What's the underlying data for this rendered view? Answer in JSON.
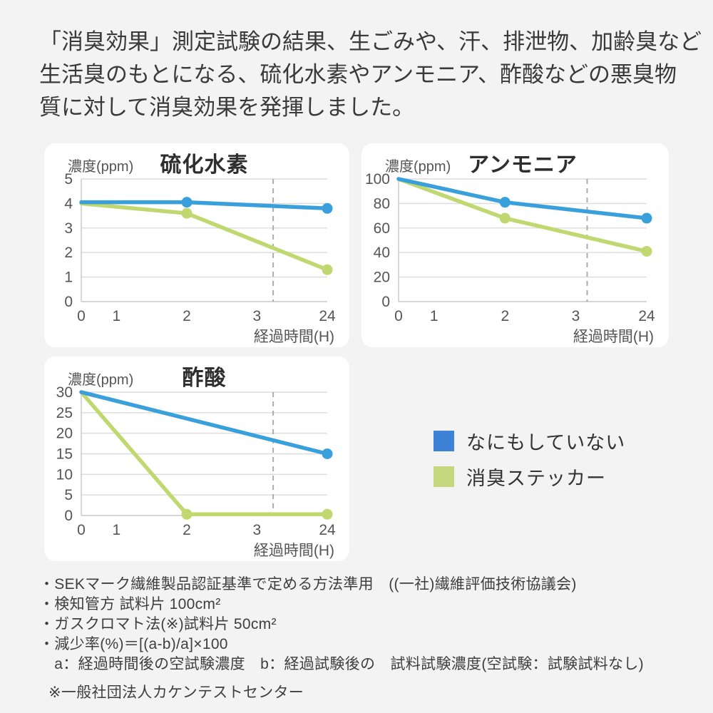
{
  "header": {
    "lines": [
      "「消臭効果」測定試験の結果、生ごみや、汗、排泄物、加齢臭など",
      "生活臭のもとになる、硫化水素やアンモニア、酢酸などの悪臭物",
      "質に対して消臭効果を発揮しました。"
    ]
  },
  "colors": {
    "page_bg": "#F3F3F3",
    "card_bg": "#FFFFFF",
    "line_blue": "#3AA0DC",
    "line_green": "#C1D870",
    "legend_blue": "#3E82D8",
    "legend_green": "#C5D77D",
    "grid": "#DBDBDB",
    "axis": "#C8C8C8",
    "dashed_marker": "#ACACAC",
    "tick_text": "#555555",
    "title_text": "#2E2E2E"
  },
  "legend": {
    "items": [
      {
        "label": "なにもしていない",
        "color": "#3E82D8"
      },
      {
        "label": "消臭ステッカー",
        "color": "#C5D77D"
      }
    ],
    "position": "right-middle"
  },
  "chart_data": [
    {
      "type": "line",
      "title": "硫化水素",
      "ylabel": "濃度(ppm)",
      "xlabel": "経過時間(H)",
      "x_ticks": [
        0,
        1,
        2,
        3,
        24
      ],
      "y_ticks": [
        0,
        1,
        2,
        3,
        4,
        5
      ],
      "ylim": [
        0,
        5
      ],
      "grid": true,
      "x_layout_fracs": {
        "0": 0,
        "1": 0.143,
        "2": 0.429,
        "3": 0.714,
        "24": 1.0
      },
      "dashed_marker_frac": 0.78,
      "series": [
        {
          "name": "なにもしていない",
          "color_key": "blue",
          "x": [
            0,
            2,
            24
          ],
          "y": [
            4.05,
            4.05,
            3.8
          ],
          "markers_at_x": [
            2,
            24
          ]
        },
        {
          "name": "消臭ステッカー",
          "color_key": "green",
          "x": [
            0,
            2,
            24
          ],
          "y": [
            4.0,
            3.6,
            1.3
          ],
          "markers_at_x": [
            2,
            24
          ]
        }
      ]
    },
    {
      "type": "line",
      "title": "アンモニア",
      "ylabel": "濃度(ppm)",
      "xlabel": "経過時間(H)",
      "x_ticks": [
        0,
        1,
        2,
        3,
        24
      ],
      "y_ticks": [
        0,
        20,
        40,
        60,
        80,
        100
      ],
      "ylim": [
        0,
        100
      ],
      "grid": true,
      "x_layout_fracs": {
        "0": 0,
        "1": 0.143,
        "2": 0.429,
        "3": 0.714,
        "24": 1.0
      },
      "dashed_marker_frac": 0.76,
      "series": [
        {
          "name": "なにもしていない",
          "color_key": "blue",
          "x": [
            0,
            2,
            24
          ],
          "y": [
            100,
            81,
            68
          ],
          "markers_at_x": [
            2,
            24
          ]
        },
        {
          "name": "消臭ステッカー",
          "color_key": "green",
          "x": [
            0,
            2,
            24
          ],
          "y": [
            100,
            68,
            41
          ],
          "markers_at_x": [
            2,
            24
          ]
        }
      ]
    },
    {
      "type": "line",
      "title": "酢酸",
      "ylabel": "濃度(ppm)",
      "xlabel": "経過時間(H)",
      "x_ticks": [
        0,
        1,
        2,
        3,
        24
      ],
      "y_ticks": [
        0,
        5,
        10,
        15,
        20,
        25,
        30
      ],
      "ylim": [
        0,
        30
      ],
      "grid": true,
      "x_layout_fracs": {
        "0": 0,
        "1": 0.143,
        "2": 0.429,
        "3": 0.714,
        "24": 1.0
      },
      "dashed_marker_frac": 0.78,
      "series": [
        {
          "name": "なにもしていない",
          "color_key": "blue",
          "x": [
            0,
            24
          ],
          "y": [
            30,
            15
          ],
          "markers_at_x": [
            24
          ]
        },
        {
          "name": "消臭ステッカー",
          "color_key": "green",
          "x": [
            0,
            2,
            24
          ],
          "y": [
            30,
            0.3,
            0.3
          ],
          "markers_at_x": [
            2,
            24
          ]
        }
      ]
    }
  ],
  "notes": {
    "lines": [
      "・SEKマーク繊維製品認証基準で定める方法準用　((一社)繊維評価技術協議会)",
      "・検知管方 試料片 100cm²",
      "・ガスクロマト法(※)試料片 50cm²",
      "・減少率(%)＝[(a-b)/a]×100",
      "　a：経過時間後の空試験濃度　b：経過試験後の　試料試験濃度(空試験：試験試料なし)",
      "※一般社団法人カケンテストセンター"
    ]
  }
}
